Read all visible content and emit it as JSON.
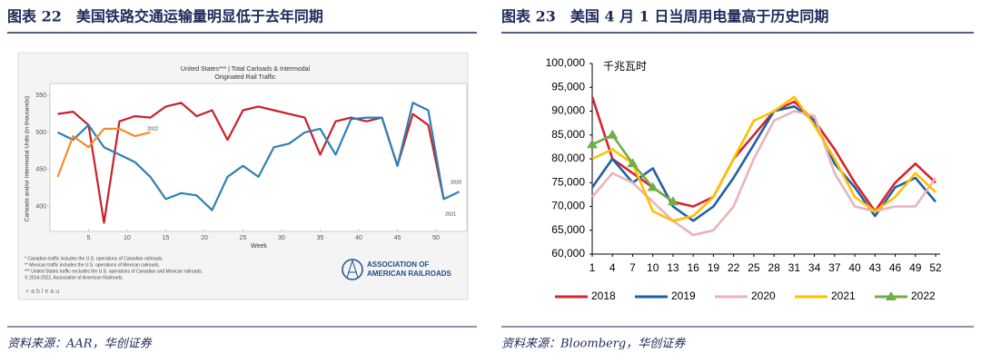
{
  "chart_data": [
    {
      "type": "line",
      "figure_title": "图表 22　美国铁路交通运输量明显低于去年同期",
      "source": "资料来源：AAR，华创证券",
      "title": "United States*** | Total Carloads & Intermodal",
      "subtitle": "Originated Rail Traffic",
      "x_label": "Week",
      "y_label": "Carloads and/or Intermodal Units (in thousands)",
      "x": [
        1,
        3,
        5,
        7,
        9,
        11,
        13,
        15,
        17,
        19,
        21,
        23,
        25,
        27,
        29,
        31,
        33,
        35,
        37,
        39,
        41,
        43,
        45,
        47,
        49,
        51,
        53
      ],
      "series": [
        {
          "name": "2021",
          "color": "#c8202a",
          "values": [
            525,
            528,
            510,
            378,
            515,
            522,
            520,
            535,
            540,
            522,
            530,
            490,
            530,
            535,
            530,
            525,
            520,
            470,
            515,
            520,
            515,
            520,
            455,
            525,
            510,
            410,
            null
          ]
        },
        {
          "name": "2020",
          "color": "#2f7fb5",
          "values": [
            500,
            490,
            510,
            480,
            470,
            460,
            440,
            410,
            418,
            415,
            395,
            440,
            455,
            440,
            480,
            485,
            500,
            505,
            470,
            518,
            520,
            520,
            455,
            540,
            530,
            410,
            420
          ]
        },
        {
          "name": "2022",
          "color": "#f28e2b",
          "values": [
            440,
            495,
            480,
            505,
            505,
            495,
            500,
            null,
            null,
            null,
            null,
            null,
            null,
            null,
            null,
            null,
            null,
            null,
            null,
            null,
            null,
            null,
            null,
            null,
            null,
            null,
            null
          ]
        }
      ],
      "annotations": [
        "2022",
        "2020",
        "2021"
      ],
      "xlim": [
        0,
        54
      ],
      "ylim": [
        370,
        560
      ],
      "xticks": [
        5,
        10,
        15,
        20,
        25,
        30,
        35,
        40,
        45,
        50
      ],
      "yticks": [
        400,
        450,
        500,
        550
      ],
      "grid": false,
      "footnotes": [
        "* Canadian traffic includes the U.S. operations of Canadian railroads.",
        "** Mexican traffic includes the U.S. operations of Mexican railroads.",
        "*** United States traffic excludes the U.S. operations of Canadian and Mexican railroads.",
        "© 2014-2022, Association of American Railroads."
      ],
      "logo": [
        "ASSOCIATION OF",
        "AMERICAN RAILROADS"
      ],
      "brand": "+ableau"
    },
    {
      "type": "line",
      "figure_title": "图表 23　美国 4 月 1 日当周用电量高于历史同期",
      "source": "资料来源：Bloomberg，华创证券",
      "unit_label": "千兆瓦时",
      "x": [
        1,
        4,
        7,
        10,
        13,
        16,
        19,
        22,
        25,
        28,
        31,
        34,
        37,
        40,
        43,
        46,
        49,
        52
      ],
      "series": [
        {
          "name": "2018",
          "color": "#d9232e",
          "values": [
            93000,
            80000,
            77000,
            74000,
            71000,
            70000,
            72000,
            80000,
            85000,
            90000,
            92000,
            88000,
            82000,
            75000,
            69000,
            75000,
            79000,
            75000
          ]
        },
        {
          "name": "2019",
          "color": "#1f5fa8",
          "values": [
            74000,
            80000,
            75000,
            78000,
            70000,
            67000,
            70000,
            76000,
            83000,
            90000,
            91000,
            88000,
            79000,
            74000,
            68000,
            74000,
            76000,
            71000
          ]
        },
        {
          "name": "2020",
          "color": "#e8b4b8",
          "values": [
            72000,
            77000,
            75000,
            71000,
            67000,
            64000,
            65000,
            70000,
            80000,
            88000,
            90000,
            89000,
            77000,
            70000,
            69000,
            70000,
            70000,
            76000
          ]
        },
        {
          "name": "2021",
          "color": "#ffc000",
          "values": [
            80000,
            82000,
            79000,
            69000,
            67000,
            68000,
            72000,
            80000,
            88000,
            90000,
            93000,
            87000,
            80000,
            72000,
            69000,
            72000,
            77000,
            73000
          ]
        },
        {
          "name": "2022",
          "color": "#70ad47",
          "marker": "triangle",
          "values": [
            83000,
            85000,
            79000,
            74000,
            71000,
            null,
            null,
            null,
            null,
            null,
            null,
            null,
            null,
            null,
            null,
            null,
            null,
            null
          ]
        }
      ],
      "xlim": [
        1,
        52
      ],
      "ylim": [
        60000,
        100000
      ],
      "xticks": [
        1,
        4,
        7,
        10,
        13,
        16,
        19,
        22,
        25,
        28,
        31,
        34,
        37,
        40,
        43,
        46,
        49,
        52
      ],
      "yticks": [
        {
          "value": 60000,
          "label": "60,000"
        },
        {
          "value": 65000,
          "label": "65,000"
        },
        {
          "value": 70000,
          "label": "70,000"
        },
        {
          "value": 75000,
          "label": "75,000"
        },
        {
          "value": 80000,
          "label": "80,000"
        },
        {
          "value": 85000,
          "label": "85,000"
        },
        {
          "value": 90000,
          "label": "90,000"
        },
        {
          "value": 95000,
          "label": "95,000"
        },
        {
          "value": 100000,
          "label": "100,000"
        }
      ],
      "grid": false,
      "legend": "bottom"
    }
  ]
}
